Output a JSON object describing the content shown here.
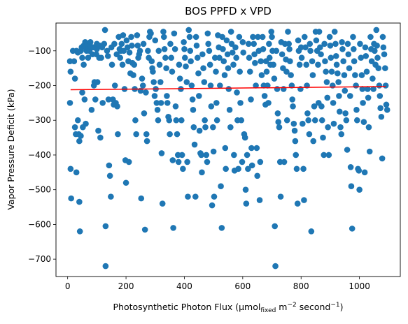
{
  "chart_data": {
    "type": "scatter",
    "title": "BOS PPFD x VPD",
    "xlabel_parts": {
      "prefix": "Photosynthetic Photon Flux (µmol",
      "sub": "fixed",
      "middle": " m",
      "sup1": "−2",
      "suffix": " second",
      "sup2": "−1",
      "close": ")"
    },
    "ylabel": "Vapor Pressure Deficit (kPa)",
    "xlim": [
      -40,
      1140
    ],
    "ylim": [
      -750,
      -20
    ],
    "x_ticks": [
      0,
      200,
      400,
      600,
      800,
      1000
    ],
    "y_ticks": [
      -700,
      -600,
      -500,
      -400,
      -300,
      -200,
      -100
    ],
    "x_tick_labels": [
      "0",
      "200",
      "400",
      "600",
      "800",
      "1000"
    ],
    "y_tick_labels": [
      "−700",
      "−600",
      "−500",
      "−400",
      "−300",
      "−200",
      "−100"
    ],
    "scatter_color": "#1f77b4",
    "trend_color": "#ff0000",
    "trend_line": {
      "x": [
        10,
        1090
      ],
      "y": [
        -212,
        -203
      ]
    },
    "points": [
      [
        8,
        -130
      ],
      [
        10,
        -160
      ],
      [
        8,
        -250
      ],
      [
        10,
        -440
      ],
      [
        12,
        -525
      ],
      [
        18,
        -100
      ],
      [
        22,
        -130
      ],
      [
        25,
        -180
      ],
      [
        25,
        -320
      ],
      [
        28,
        -340
      ],
      [
        30,
        -450
      ],
      [
        30,
        -100
      ],
      [
        35,
        -105
      ],
      [
        35,
        -300
      ],
      [
        38,
        -340
      ],
      [
        40,
        -360
      ],
      [
        40,
        -535
      ],
      [
        42,
        -620
      ],
      [
        45,
        -100
      ],
      [
        45,
        -345
      ],
      [
        48,
        -90
      ],
      [
        50,
        -120
      ],
      [
        50,
        -220
      ],
      [
        52,
        -320
      ],
      [
        55,
        -85
      ],
      [
        55,
        -140
      ],
      [
        58,
        -240
      ],
      [
        60,
        -75
      ],
      [
        60,
        -90
      ],
      [
        62,
        -310
      ],
      [
        65,
        -100
      ],
      [
        68,
        -80
      ],
      [
        70,
        -120
      ],
      [
        72,
        -95
      ],
      [
        75,
        -100
      ],
      [
        78,
        -75
      ],
      [
        80,
        -88
      ],
      [
        82,
        -270
      ],
      [
        85,
        -110
      ],
      [
        88,
        -90
      ],
      [
        90,
        -200
      ],
      [
        92,
        -190
      ],
      [
        95,
        -240
      ],
      [
        98,
        -110
      ],
      [
        100,
        -80
      ],
      [
        100,
        -95
      ],
      [
        102,
        -190
      ],
      [
        105,
        -330
      ],
      [
        108,
        -120
      ],
      [
        110,
        -85
      ],
      [
        112,
        -350
      ],
      [
        115,
        -120
      ],
      [
        118,
        -90
      ],
      [
        120,
        -250
      ],
      [
        125,
        -80
      ],
      [
        128,
        -40
      ],
      [
        130,
        -605
      ],
      [
        130,
        -720
      ],
      [
        135,
        -100
      ],
      [
        138,
        -115
      ],
      [
        140,
        -240
      ],
      [
        142,
        -430
      ],
      [
        145,
        -460
      ],
      [
        148,
        -520
      ],
      [
        150,
        -90
      ],
      [
        152,
        -140
      ],
      [
        155,
        -240
      ],
      [
        158,
        -255
      ],
      [
        160,
        -80
      ],
      [
        162,
        -200
      ],
      [
        165,
        -250
      ],
      [
        168,
        -110
      ],
      [
        170,
        -260
      ],
      [
        172,
        -340
      ],
      [
        175,
        -60
      ],
      [
        178,
        -95
      ],
      [
        180,
        -120
      ],
      [
        182,
        -100
      ],
      [
        185,
        -80
      ],
      [
        188,
        -140
      ],
      [
        190,
        -55
      ],
      [
        192,
        -100
      ],
      [
        195,
        -210
      ],
      [
        198,
        -415
      ],
      [
        200,
        -480
      ],
      [
        202,
        -70
      ],
      [
        205,
        -90
      ],
      [
        208,
        -130
      ],
      [
        210,
        -420
      ],
      [
        212,
        -105
      ],
      [
        215,
        -165
      ],
      [
        218,
        -60
      ],
      [
        220,
        -85
      ],
      [
        222,
        -135
      ],
      [
        225,
        -170
      ],
      [
        228,
        -140
      ],
      [
        230,
        -210
      ],
      [
        232,
        -300
      ],
      [
        235,
        -340
      ],
      [
        238,
        -55
      ],
      [
        240,
        -85
      ],
      [
        242,
        -120
      ],
      [
        245,
        -110
      ],
      [
        248,
        -100
      ],
      [
        250,
        -215
      ],
      [
        252,
        -525
      ],
      [
        255,
        -180
      ],
      [
        258,
        -200
      ],
      [
        260,
        -80
      ],
      [
        262,
        -280
      ],
      [
        265,
        -615
      ],
      [
        268,
        -220
      ],
      [
        270,
        -340
      ],
      [
        272,
        -360
      ],
      [
        275,
        -100
      ],
      [
        278,
        -120
      ],
      [
        280,
        -60
      ],
      [
        282,
        -45
      ],
      [
        285,
        -50
      ],
      [
        288,
        -130
      ],
      [
        290,
        -150
      ],
      [
        292,
        -160
      ],
      [
        295,
        -190
      ],
      [
        298,
        -230
      ],
      [
        300,
        -70
      ],
      [
        302,
        -210
      ],
      [
        305,
        -250
      ],
      [
        308,
        -270
      ],
      [
        310,
        -300
      ],
      [
        312,
        -100
      ],
      [
        315,
        -140
      ],
      [
        318,
        -190
      ],
      [
        320,
        -250
      ],
      [
        322,
        -395
      ],
      [
        325,
        -540
      ],
      [
        328,
        -45
      ],
      [
        330,
        -60
      ],
      [
        332,
        -95
      ],
      [
        335,
        -120
      ],
      [
        338,
        -150
      ],
      [
        340,
        -230
      ],
      [
        342,
        -250
      ],
      [
        345,
        -290
      ],
      [
        348,
        -300
      ],
      [
        350,
        -340
      ],
      [
        352,
        -80
      ],
      [
        355,
        -120
      ],
      [
        358,
        -160
      ],
      [
        360,
        -415
      ],
      [
        362,
        -610
      ],
      [
        365,
        -50
      ],
      [
        368,
        -95
      ],
      [
        370,
        -260
      ],
      [
        372,
        -300
      ],
      [
        375,
        -340
      ],
      [
        378,
        -400
      ],
      [
        380,
        -420
      ],
      [
        382,
        -140
      ],
      [
        385,
        -180
      ],
      [
        388,
        -210
      ],
      [
        390,
        -300
      ],
      [
        392,
        -400
      ],
      [
        395,
        -440
      ],
      [
        398,
        -75
      ],
      [
        400,
        -95
      ],
      [
        402,
        -120
      ],
      [
        405,
        -145
      ],
      [
        408,
        -190
      ],
      [
        410,
        -420
      ],
      [
        412,
        -520
      ],
      [
        415,
        -40
      ],
      [
        418,
        -60
      ],
      [
        420,
        -100
      ],
      [
        422,
        -130
      ],
      [
        425,
        -200
      ],
      [
        428,
        -240
      ],
      [
        430,
        -270
      ],
      [
        432,
        -320
      ],
      [
        435,
        -370
      ],
      [
        438,
        -520
      ],
      [
        440,
        -60
      ],
      [
        442,
        -85
      ],
      [
        445,
        -120
      ],
      [
        448,
        -165
      ],
      [
        450,
        -230
      ],
      [
        452,
        -330
      ],
      [
        455,
        -395
      ],
      [
        458,
        -400
      ],
      [
        460,
        -450
      ],
      [
        462,
        -110
      ],
      [
        465,
        -150
      ],
      [
        468,
        -190
      ],
      [
        470,
        -300
      ],
      [
        472,
        -320
      ],
      [
        475,
        -400
      ],
      [
        478,
        -420
      ],
      [
        480,
        -50
      ],
      [
        482,
        -80
      ],
      [
        485,
        -100
      ],
      [
        488,
        -140
      ],
      [
        490,
        -200
      ],
      [
        492,
        -260
      ],
      [
        495,
        -545
      ],
      [
        498,
        -320
      ],
      [
        500,
        -390
      ],
      [
        502,
        -520
      ],
      [
        505,
        -120
      ],
      [
        508,
        -160
      ],
      [
        510,
        -250
      ],
      [
        512,
        -300
      ],
      [
        515,
        -55
      ],
      [
        518,
        -90
      ],
      [
        520,
        -120
      ],
      [
        522,
        -200
      ],
      [
        525,
        -490
      ],
      [
        528,
        -610
      ],
      [
        530,
        -60
      ],
      [
        532,
        -95
      ],
      [
        535,
        -130
      ],
      [
        538,
        -170
      ],
      [
        540,
        -380
      ],
      [
        542,
        -440
      ],
      [
        545,
        -70
      ],
      [
        548,
        -110
      ],
      [
        550,
        -150
      ],
      [
        552,
        -210
      ],
      [
        555,
        -270
      ],
      [
        558,
        -320
      ],
      [
        560,
        -45
      ],
      [
        562,
        -80
      ],
      [
        565,
        -105
      ],
      [
        568,
        -140
      ],
      [
        570,
        -400
      ],
      [
        572,
        -445
      ],
      [
        575,
        -90
      ],
      [
        578,
        -120
      ],
      [
        580,
        -220
      ],
      [
        582,
        -300
      ],
      [
        585,
        -440
      ],
      [
        588,
        -60
      ],
      [
        590,
        -160
      ],
      [
        592,
        -250
      ],
      [
        595,
        -300
      ],
      [
        598,
        -420
      ],
      [
        600,
        -75
      ],
      [
        602,
        -105
      ],
      [
        605,
        -340
      ],
      [
        608,
        -350
      ],
      [
        610,
        -500
      ],
      [
        612,
        -540
      ],
      [
        615,
        -400
      ],
      [
        618,
        -440
      ],
      [
        620,
        -80
      ],
      [
        622,
        -120
      ],
      [
        625,
        -160
      ],
      [
        628,
        -240
      ],
      [
        630,
        -380
      ],
      [
        632,
        -430
      ],
      [
        635,
        -60
      ],
      [
        638,
        -80
      ],
      [
        640,
        -110
      ],
      [
        642,
        -135
      ],
      [
        645,
        -200
      ],
      [
        648,
        -380
      ],
      [
        650,
        -460
      ],
      [
        652,
        -60
      ],
      [
        655,
        -100
      ],
      [
        658,
        -530
      ],
      [
        660,
        -420
      ],
      [
        662,
        -130
      ],
      [
        665,
        -170
      ],
      [
        668,
        -60
      ],
      [
        670,
        -95
      ],
      [
        672,
        -200
      ],
      [
        675,
        -230
      ],
      [
        678,
        -255
      ],
      [
        680,
        -130
      ],
      [
        682,
        -160
      ],
      [
        685,
        -200
      ],
      [
        688,
        -250
      ],
      [
        690,
        -80
      ],
      [
        692,
        -120
      ],
      [
        695,
        -140
      ],
      [
        698,
        -45
      ],
      [
        700,
        -60
      ],
      [
        702,
        -100
      ],
      [
        705,
        -140
      ],
      [
        708,
        -180
      ],
      [
        710,
        -605
      ],
      [
        712,
        -720
      ],
      [
        715,
        -100
      ],
      [
        718,
        -210
      ],
      [
        720,
        -280
      ],
      [
        722,
        -305
      ],
      [
        725,
        -320
      ],
      [
        728,
        -420
      ],
      [
        730,
        -520
      ],
      [
        732,
        -75
      ],
      [
        735,
        -110
      ],
      [
        738,
        -150
      ],
      [
        740,
        -210
      ],
      [
        742,
        -420
      ],
      [
        745,
        -80
      ],
      [
        748,
        -125
      ],
      [
        750,
        -160
      ],
      [
        752,
        -300
      ],
      [
        755,
        -45
      ],
      [
        758,
        -80
      ],
      [
        760,
        -95
      ],
      [
        762,
        -130
      ],
      [
        765,
        -170
      ],
      [
        768,
        -200
      ],
      [
        770,
        -240
      ],
      [
        772,
        -260
      ],
      [
        775,
        -310
      ],
      [
        778,
        -330
      ],
      [
        780,
        -360
      ],
      [
        782,
        -400
      ],
      [
        785,
        -440
      ],
      [
        788,
        -540
      ],
      [
        790,
        -70
      ],
      [
        792,
        -100
      ],
      [
        795,
        -140
      ],
      [
        798,
        -210
      ],
      [
        800,
        -90
      ],
      [
        802,
        -120
      ],
      [
        805,
        -310
      ],
      [
        808,
        -440
      ],
      [
        810,
        -530
      ],
      [
        812,
        -60
      ],
      [
        815,
        -90
      ],
      [
        818,
        -140
      ],
      [
        820,
        -200
      ],
      [
        822,
        -280
      ],
      [
        825,
        -300
      ],
      [
        828,
        -340
      ],
      [
        830,
        -80
      ],
      [
        832,
        -100
      ],
      [
        835,
        -620
      ],
      [
        838,
        -130
      ],
      [
        840,
        -170
      ],
      [
        842,
        -360
      ],
      [
        845,
        -260
      ],
      [
        848,
        -300
      ],
      [
        850,
        -45
      ],
      [
        852,
        -70
      ],
      [
        855,
        -100
      ],
      [
        858,
        -140
      ],
      [
        860,
        -250
      ],
      [
        862,
        -45
      ],
      [
        865,
        -90
      ],
      [
        868,
        -110
      ],
      [
        870,
        -260
      ],
      [
        872,
        -300
      ],
      [
        875,
        -350
      ],
      [
        878,
        -400
      ],
      [
        880,
        -80
      ],
      [
        882,
        -130
      ],
      [
        885,
        -160
      ],
      [
        888,
        -190
      ],
      [
        890,
        -235
      ],
      [
        892,
        -320
      ],
      [
        895,
        -400
      ],
      [
        898,
        -60
      ],
      [
        900,
        -85
      ],
      [
        902,
        -120
      ],
      [
        905,
        -160
      ],
      [
        908,
        -200
      ],
      [
        910,
        -250
      ],
      [
        912,
        -310
      ],
      [
        915,
        -45
      ],
      [
        918,
        -80
      ],
      [
        920,
        -115
      ],
      [
        922,
        -140
      ],
      [
        925,
        -165
      ],
      [
        928,
        -190
      ],
      [
        930,
        -230
      ],
      [
        932,
        -275
      ],
      [
        935,
        -320
      ],
      [
        938,
        -340
      ],
      [
        940,
        -75
      ],
      [
        942,
        -95
      ],
      [
        945,
        -130
      ],
      [
        948,
        -170
      ],
      [
        950,
        -215
      ],
      [
        952,
        -280
      ],
      [
        955,
        -300
      ],
      [
        958,
        -385
      ],
      [
        960,
        -80
      ],
      [
        962,
        -110
      ],
      [
        965,
        -150
      ],
      [
        968,
        -230
      ],
      [
        970,
        -435
      ],
      [
        972,
        -490
      ],
      [
        975,
        -612
      ],
      [
        978,
        -60
      ],
      [
        980,
        -95
      ],
      [
        982,
        -130
      ],
      [
        985,
        -170
      ],
      [
        988,
        -200
      ],
      [
        990,
        -270
      ],
      [
        992,
        -300
      ],
      [
        995,
        -440
      ],
      [
        998,
        -445
      ],
      [
        1000,
        -500
      ],
      [
        1002,
        -80
      ],
      [
        1005,
        -120
      ],
      [
        1008,
        -170
      ],
      [
        1010,
        -210
      ],
      [
        1012,
        -250
      ],
      [
        1015,
        -305
      ],
      [
        1018,
        -450
      ],
      [
        1020,
        -90
      ],
      [
        1022,
        -115
      ],
      [
        1025,
        -160
      ],
      [
        1028,
        -210
      ],
      [
        1030,
        -235
      ],
      [
        1032,
        -320
      ],
      [
        1035,
        -390
      ],
      [
        1038,
        -60
      ],
      [
        1040,
        -95
      ],
      [
        1042,
        -130
      ],
      [
        1045,
        -180
      ],
      [
        1048,
        -210
      ],
      [
        1050,
        -80
      ],
      [
        1052,
        -100
      ],
      [
        1055,
        -140
      ],
      [
        1058,
        -40
      ],
      [
        1060,
        -85
      ],
      [
        1062,
        -120
      ],
      [
        1065,
        -150
      ],
      [
        1068,
        -200
      ],
      [
        1070,
        -230
      ],
      [
        1072,
        -265
      ],
      [
        1075,
        -290
      ],
      [
        1078,
        -410
      ],
      [
        1080,
        -60
      ],
      [
        1082,
        -90
      ],
      [
        1085,
        -110
      ],
      [
        1088,
        -150
      ],
      [
        1090,
        -200
      ],
      [
        1092,
        -255
      ],
      [
        1095,
        -270
      ]
    ]
  }
}
